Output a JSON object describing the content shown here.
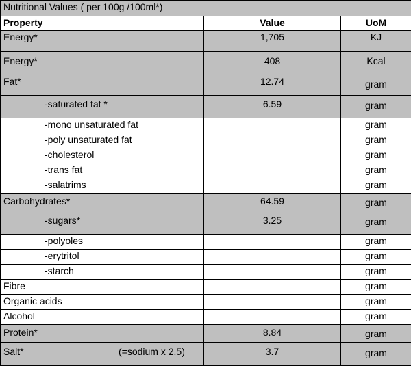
{
  "title": "Nutritional Values ( per 100g /100ml*)",
  "header": {
    "property": "Property",
    "value": "Value",
    "uom": "UoM"
  },
  "rows": [
    {
      "property": "Energy*",
      "value": "1,705",
      "uom": "KJ"
    },
    {
      "property": "Energy*",
      "value": "408",
      "uom": "Kcal"
    },
    {
      "property": "Fat*",
      "value": "12.74",
      "uom": "gram"
    },
    {
      "property": "-saturated fat *",
      "value": "6.59",
      "uom": "gram"
    },
    {
      "property": "-mono unsaturated fat",
      "value": "",
      "uom": "gram"
    },
    {
      "property": "-poly unsaturated fat",
      "value": "",
      "uom": "gram"
    },
    {
      "property": "-cholesterol",
      "value": "",
      "uom": "gram"
    },
    {
      "property": "-trans fat",
      "value": "",
      "uom": "gram"
    },
    {
      "property": "-salatrims",
      "value": "",
      "uom": "gram"
    },
    {
      "property": "Carbohydrates*",
      "value": "64.59",
      "uom": "gram"
    },
    {
      "property": "-sugars*",
      "value": "3.25",
      "uom": "gram"
    },
    {
      "property": "-polyoles",
      "value": "",
      "uom": "gram"
    },
    {
      "property": "-erytritol",
      "value": "",
      "uom": "gram"
    },
    {
      "property": "-starch",
      "value": "",
      "uom": "gram"
    },
    {
      "property": "Fibre",
      "value": "",
      "uom": "gram"
    },
    {
      "property": "Organic acids",
      "value": "",
      "uom": "gram"
    },
    {
      "property": "Alcohol",
      "value": "",
      "uom": "gram"
    },
    {
      "property": "Protein*",
      "value": "8.84",
      "uom": "gram"
    },
    {
      "property": "Salt*",
      "note": "(=sodium x 2.5)",
      "value": "3.7",
      "uom": "gram"
    }
  ]
}
